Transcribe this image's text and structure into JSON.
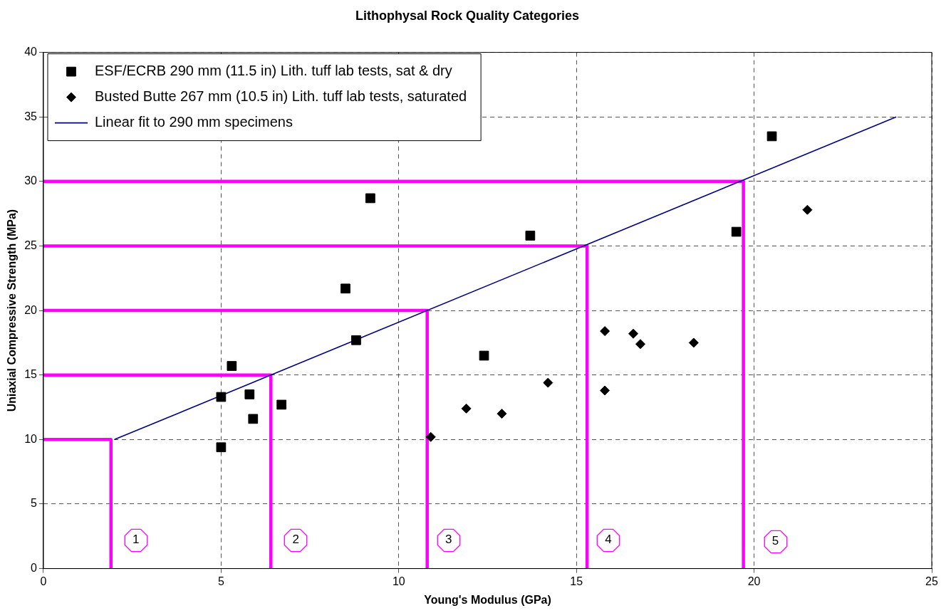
{
  "chart_data": {
    "type": "scatter",
    "title": "Lithophysal Rock Quality Categories",
    "xlabel": "Young's Modulus (GPa)",
    "ylabel": "Uniaxial Compressive Strength (MPa)",
    "xlim": [
      0,
      25
    ],
    "xticks": [
      0,
      5,
      10,
      15,
      20,
      25
    ],
    "ylim": [
      0,
      40
    ],
    "yticks": [
      0,
      5,
      10,
      15,
      20,
      25,
      30,
      35,
      40
    ],
    "grid": true,
    "legend": "top left",
    "series": [
      {
        "name": "ESF/ECRB 290 mm (11.5 in) Lith. tuff lab tests, sat & dry",
        "type": "scatter",
        "marker": "square",
        "color": "#000000",
        "x": [
          5.0,
          5.0,
          5.3,
          5.8,
          5.9,
          6.7,
          8.5,
          8.8,
          9.2,
          12.4,
          13.7,
          19.5,
          20.5
        ],
        "values": [
          13.3,
          9.4,
          15.7,
          13.5,
          11.6,
          12.7,
          21.7,
          17.7,
          28.7,
          16.5,
          25.8,
          26.1,
          33.5
        ]
      },
      {
        "name": "Busted Butte 267 mm (10.5 in) Lith. tuff lab tests, saturated",
        "type": "scatter",
        "marker": "diamond",
        "color": "#000000",
        "x": [
          10.9,
          11.9,
          12.9,
          14.2,
          15.8,
          15.8,
          16.6,
          16.8,
          18.3,
          21.5
        ],
        "values": [
          10.2,
          12.4,
          12.0,
          14.4,
          18.4,
          13.8,
          18.2,
          17.4,
          17.5,
          27.8
        ]
      },
      {
        "name": "Linear fit to 290 mm specimens",
        "type": "line",
        "marker": "none",
        "color": "#000080",
        "x": [
          2,
          24
        ],
        "values": [
          10,
          35
        ]
      },
      {
        "type": "line",
        "marker": "none",
        "color": "#ff00ff",
        "x": [
          0,
          1.9,
          1.9
        ],
        "values": [
          10,
          10,
          0
        ]
      },
      {
        "type": "line",
        "marker": "none",
        "color": "#ff00ff",
        "x": [
          0,
          6.4,
          6.4
        ],
        "values": [
          15,
          15,
          0
        ]
      },
      {
        "type": "line",
        "marker": "none",
        "color": "#ff00ff",
        "x": [
          0,
          10.8,
          10.8
        ],
        "values": [
          20,
          20,
          0
        ]
      },
      {
        "type": "line",
        "marker": "none",
        "color": "#ff00ff",
        "x": [
          0,
          15.3,
          15.3
        ],
        "values": [
          25,
          25,
          0
        ]
      },
      {
        "type": "line",
        "marker": "none",
        "color": "#ff00ff",
        "x": [
          0,
          19.7,
          19.7
        ],
        "values": [
          30,
          30,
          0
        ]
      }
    ],
    "annotations": [
      {
        "text": "1",
        "x": 2.6,
        "y": 2.2
      },
      {
        "text": "2",
        "x": 7.1,
        "y": 2.2
      },
      {
        "text": "3",
        "x": 11.4,
        "y": 2.2
      },
      {
        "text": "4",
        "x": 15.9,
        "y": 2.2
      },
      {
        "text": "5",
        "x": 20.6,
        "y": 2.1
      }
    ]
  }
}
